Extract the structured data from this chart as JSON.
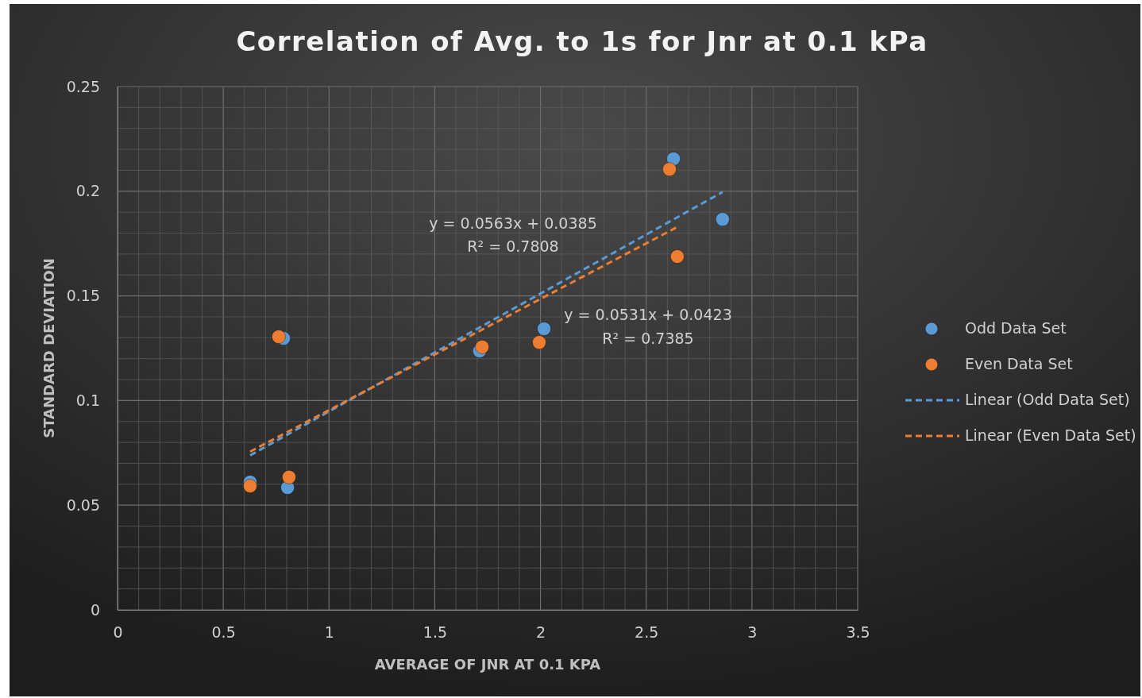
{
  "chart_data": {
    "type": "scatter",
    "title": "Correlation of Avg. to 1s for Jnr at 0.1 kPa",
    "xlabel": "AVERAGE OF JNR AT 0.1 KPA",
    "ylabel": "STANDARD DEVIATION",
    "xlim": [
      0,
      3.5
    ],
    "xticks": [
      0,
      0.5,
      1,
      1.5,
      2,
      2.5,
      3,
      3.5
    ],
    "ylim": [
      0,
      0.25
    ],
    "yticks": [
      0,
      0.05,
      0.1,
      0.15,
      0.2,
      0.25
    ],
    "grid": true,
    "legend": "right",
    "marker": "circle",
    "series": [
      {
        "name": "Odd Data Set",
        "color": "#5b9bd5",
        "x": [
          0.627,
          0.804,
          0.785,
          1.712,
          2.017,
          2.629,
          2.861
        ],
        "values": [
          0.0611,
          0.0584,
          0.1297,
          0.1237,
          0.1343,
          0.2155,
          0.1866
        ]
      },
      {
        "name": "Even Data Set",
        "color": "#ed7d31",
        "x": [
          0.627,
          0.811,
          0.762,
          1.724,
          1.994,
          2.61,
          2.647
        ],
        "values": [
          0.0592,
          0.0634,
          0.1305,
          0.1256,
          0.1278,
          0.2105,
          0.1688
        ]
      },
      {
        "name": "Linear (Odd Data Set)",
        "type": "line",
        "line_style": "dashed",
        "marker": "none",
        "color": "#5b9bd5",
        "x": [
          0.627,
          2.861
        ],
        "values": [
          0.0738,
          0.1996
        ]
      },
      {
        "name": "Linear (Even Data Set)",
        "type": "line",
        "line_style": "dashed",
        "marker": "none",
        "color": "#ed7d31",
        "x": [
          0.627,
          2.647
        ],
        "values": [
          0.0756,
          0.1829
        ]
      }
    ],
    "annotations": [
      "y = 0.0563x + 0.0385",
      "R² = 0.7808",
      "y = 0.0531x + 0.0423",
      "R² = 0.7385"
    ]
  }
}
